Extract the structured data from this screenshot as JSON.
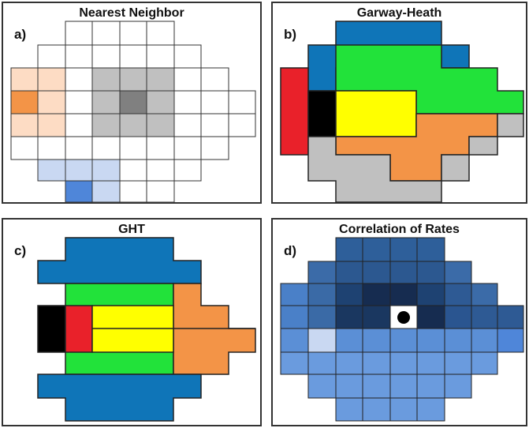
{
  "panels": [
    {
      "letter": "a)",
      "title": "Nearest Neighbor"
    },
    {
      "letter": "b)",
      "title": "Garway-Heath"
    },
    {
      "letter": "c)",
      "title": "GHT"
    },
    {
      "letter": "d)",
      "title": "Correlation of Rates"
    }
  ],
  "colors": {
    "blue": "#0f75b8",
    "green": "#22e23a",
    "yellow": "#ffff00",
    "orange": "#f39447",
    "red": "#e9212a",
    "black": "#000000",
    "gray": "#c0c0c0",
    "grid_line": "#333333"
  }
}
